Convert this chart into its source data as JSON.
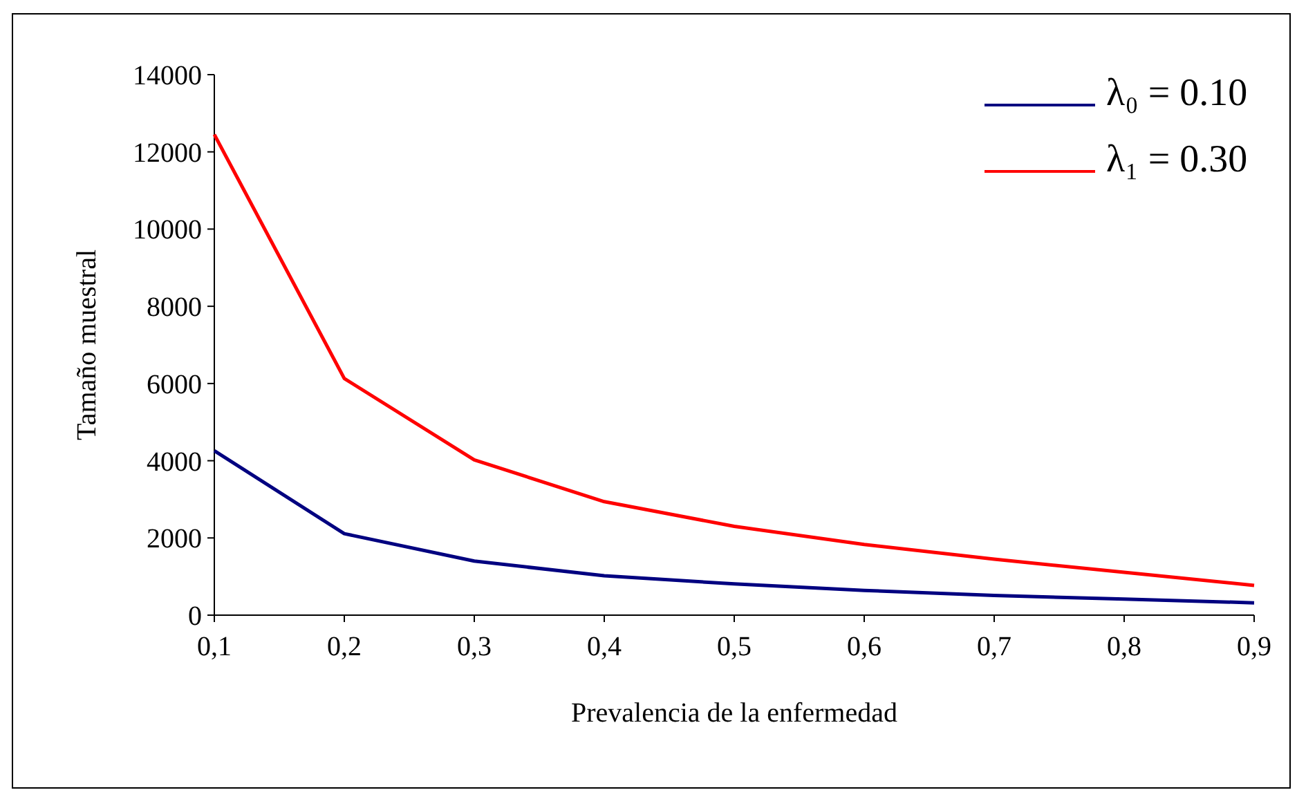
{
  "chart_data": {
    "type": "line",
    "xlabel": "Prevalencia de la enfermedad",
    "ylabel": "Tamaño muestral",
    "categories": [
      "0,1",
      "0,2",
      "0,3",
      "0,4",
      "0,5",
      "0,6",
      "0,7",
      "0,8",
      "0,9"
    ],
    "ylim": [
      0,
      14000
    ],
    "yticks": [
      0,
      2000,
      4000,
      6000,
      8000,
      10000,
      12000,
      14000
    ],
    "grid": false,
    "legend": "top right",
    "series": [
      {
        "name": "λ₀ = 0.10",
        "color": "#000080",
        "values": [
          4260,
          2110,
          1400,
          1020,
          810,
          640,
          510,
          415,
          320
        ]
      },
      {
        "name": "λ₁ = 0.30",
        "color": "#ff0000",
        "values": [
          12450,
          6130,
          4020,
          2940,
          2300,
          1830,
          1450,
          1110,
          770
        ]
      }
    ]
  }
}
